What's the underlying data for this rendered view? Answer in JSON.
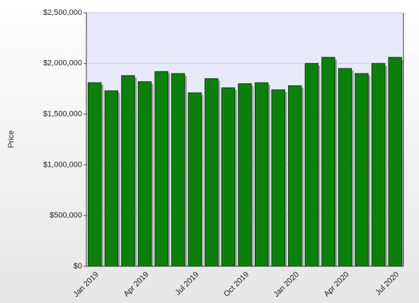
{
  "chart_data": {
    "type": "bar",
    "y_label": "Price",
    "categories": [
      "Jan 2019",
      null,
      null,
      "Apr 2019",
      null,
      null,
      "Jul 2019",
      null,
      null,
      "Oct 2019",
      null,
      null,
      "Jan 2020",
      null,
      null,
      "Apr 2020",
      null,
      null,
      "Jul 2020"
    ],
    "values": [
      1810000,
      1730000,
      1880000,
      1820000,
      1920000,
      1900000,
      1710000,
      1850000,
      1760000,
      1800000,
      1810000,
      1740000,
      1780000,
      2000000,
      2060000,
      1950000,
      1900000,
      2000000,
      2060000
    ],
    "color": "#0a820a",
    "ylim": [
      0,
      2500000
    ],
    "yticks": [
      {
        "value": 0,
        "label": "$0"
      },
      {
        "value": 500000,
        "label": "$500,000"
      },
      {
        "value": 1000000,
        "label": "$1,000,000"
      },
      {
        "value": 1500000,
        "label": "$1,500,000"
      },
      {
        "value": 2000000,
        "label": "$2,000,000"
      },
      {
        "value": 2500000,
        "label": "$2,500,000"
      }
    ],
    "grid": true
  }
}
